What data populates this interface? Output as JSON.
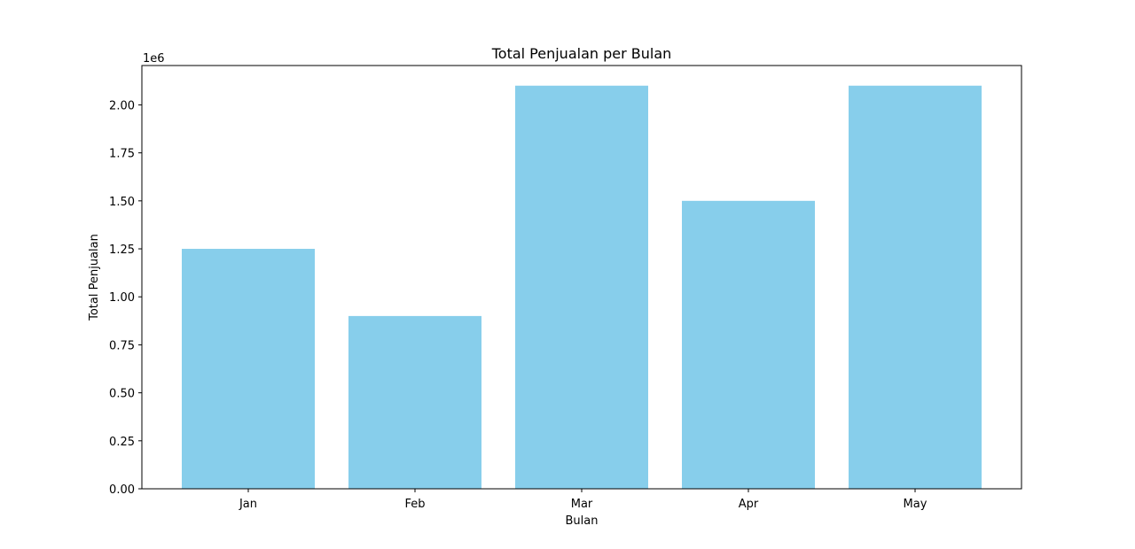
{
  "chart_data": {
    "type": "bar",
    "title": "Total Penjualan per Bulan",
    "xlabel": "Bulan",
    "ylabel": "Total Penjualan",
    "y_scale_multiplier_label": "1e6",
    "categories": [
      "Jan",
      "Feb",
      "Mar",
      "Apr",
      "May"
    ],
    "values": [
      1250000,
      900000,
      2100000,
      1500000,
      2100000
    ],
    "ylim": [
      0,
      2205000
    ],
    "yticks": [
      0,
      250000,
      500000,
      750000,
      1000000,
      1250000,
      1500000,
      1750000,
      2000000
    ],
    "ytick_labels": [
      "0.00",
      "0.25",
      "0.50",
      "0.75",
      "1.00",
      "1.25",
      "1.50",
      "1.75",
      "2.00"
    ],
    "bar_color": "#87ceeb",
    "grid": false,
    "legend": "none"
  }
}
